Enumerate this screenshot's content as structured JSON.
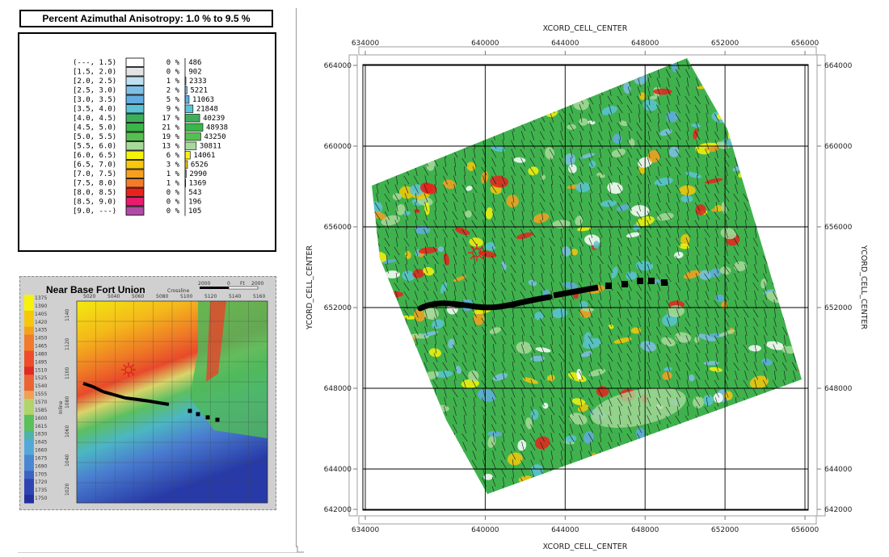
{
  "legend": {
    "title": "Percent Azimuthal Anisotropy: 1.0 % to 9.5 %",
    "rows": [
      {
        "range": "(---, 1.5)",
        "pct": "0 %",
        "count": "486",
        "color": "#ffffff"
      },
      {
        "range": "[1.5, 2.0)",
        "pct": "0 %",
        "count": "902",
        "color": "#e4e4e4"
      },
      {
        "range": "[2.0, 2.5)",
        "pct": "1 %",
        "count": "2333",
        "color": "#bfe0ee"
      },
      {
        "range": "[2.5, 3.0)",
        "pct": "2 %",
        "count": "5221",
        "color": "#7fbfe6"
      },
      {
        "range": "[3.0, 3.5)",
        "pct": "5 %",
        "count": "11063",
        "color": "#62ace0"
      },
      {
        "range": "[3.5, 4.0)",
        "pct": "9 %",
        "count": "21848",
        "color": "#5cc3d6"
      },
      {
        "range": "[4.0, 4.5)",
        "pct": "17 %",
        "count": "40239",
        "color": "#3fae5c"
      },
      {
        "range": "[4.5, 5.0)",
        "pct": "21 %",
        "count": "48938",
        "color": "#3cb54a"
      },
      {
        "range": "[5.0, 5.5)",
        "pct": "19 %",
        "count": "43250",
        "color": "#55c050"
      },
      {
        "range": "[5.5, 6.0)",
        "pct": "13 %",
        "count": "30811",
        "color": "#a8d99a"
      },
      {
        "range": "[6.0, 6.5)",
        "pct": "6 %",
        "count": "14061",
        "color": "#f7f20c"
      },
      {
        "range": "[6.5, 7.0)",
        "pct": "3 %",
        "count": "6526",
        "color": "#f6c70c"
      },
      {
        "range": "[7.0, 7.5)",
        "pct": "1 %",
        "count": "2990",
        "color": "#f7a020"
      },
      {
        "range": "[7.5, 8.0)",
        "pct": "1 %",
        "count": "1369",
        "color": "#f37c2a"
      },
      {
        "range": "[8.0, 8.5)",
        "pct": "0 %",
        "count": "543",
        "color": "#e8221c"
      },
      {
        "range": "[8.5, 9.0)",
        "pct": "0 %",
        "count": "196",
        "color": "#e81c6e"
      },
      {
        "range": "[9.0, ---)",
        "pct": "0 %",
        "count": "105",
        "color": "#b04ca6"
      }
    ]
  },
  "inset": {
    "title": "Near Base Fort Union",
    "colorbar_labels": [
      "1375",
      "1390",
      "1405",
      "1420",
      "1435",
      "1450",
      "1465",
      "1480",
      "1495",
      "1510",
      "1525",
      "1540",
      "1555",
      "1570",
      "1585",
      "1600",
      "1615",
      "1630",
      "1645",
      "1660",
      "1675",
      "1690",
      "1705",
      "1720",
      "1735",
      "1750"
    ],
    "crossline_ticks": [
      "5020",
      "5040",
      "5060",
      "5080",
      "5100",
      "5120",
      "5140",
      "5160"
    ],
    "crossline_label": "Crossline",
    "inline_ticks": [
      "1140",
      "1120",
      "1100",
      "1080",
      "1060",
      "1040",
      "1020"
    ],
    "inline_label": "Inline",
    "scale_labels": [
      "2000",
      "0",
      "Ft",
      "2000"
    ]
  },
  "chart_data": {
    "type": "heatmap",
    "xlabel": "XCORD_CELL_CENTER",
    "ylabel": "YCORD_CELL_CENTER",
    "x_ticks": [
      634000,
      640000,
      644000,
      648000,
      652000,
      656000
    ],
    "y_ticks": [
      664000,
      660000,
      656000,
      652000,
      648000,
      644000,
      642000
    ],
    "xlim": [
      634000,
      656000
    ],
    "ylim": [
      642000,
      664000
    ],
    "tick_labels_x": [
      "634000",
      "640000",
      "644000",
      "648000",
      "652000",
      "656000"
    ],
    "tick_labels_y": [
      "664000",
      "660000",
      "656000",
      "652000",
      "648000",
      "644000",
      "642000"
    ],
    "grid": true,
    "legend_placement": "top-left"
  }
}
